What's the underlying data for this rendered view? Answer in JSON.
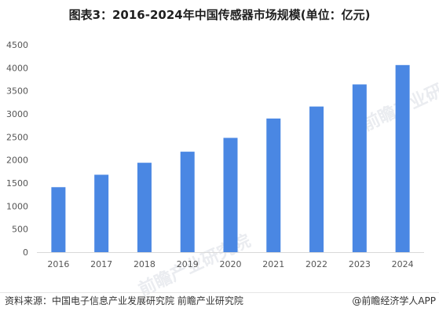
{
  "page": {
    "title": "图表3：2016-2024年中国传感器市场规模(单位：亿元)",
    "source": "资料来源：中国电子信息产业发展研究院 前瞻产业研究院",
    "credit": "@前瞻经济学人APP",
    "watermark": "前瞻产业研究院"
  },
  "colors": {
    "bar": "#4a87e3",
    "axis": "#d9d9d9",
    "text": "#555555"
  },
  "chart_data": {
    "type": "bar",
    "title": "图表3：2016-2024年中国传感器市场规模(单位：亿元)",
    "categories": [
      "2016",
      "2017",
      "2018",
      "2019",
      "2020",
      "2021",
      "2022",
      "2023",
      "2024"
    ],
    "values": [
      1410,
      1680,
      1940,
      2180,
      2480,
      2900,
      3160,
      3640,
      4060
    ],
    "xlabel": "",
    "ylabel": "",
    "ylim": [
      0,
      4500
    ],
    "yticks": [
      "0",
      "500",
      "1000",
      "1500",
      "2000",
      "2500",
      "3000",
      "3500",
      "4000",
      "4500"
    ],
    "grid": false,
    "legend": "none"
  }
}
